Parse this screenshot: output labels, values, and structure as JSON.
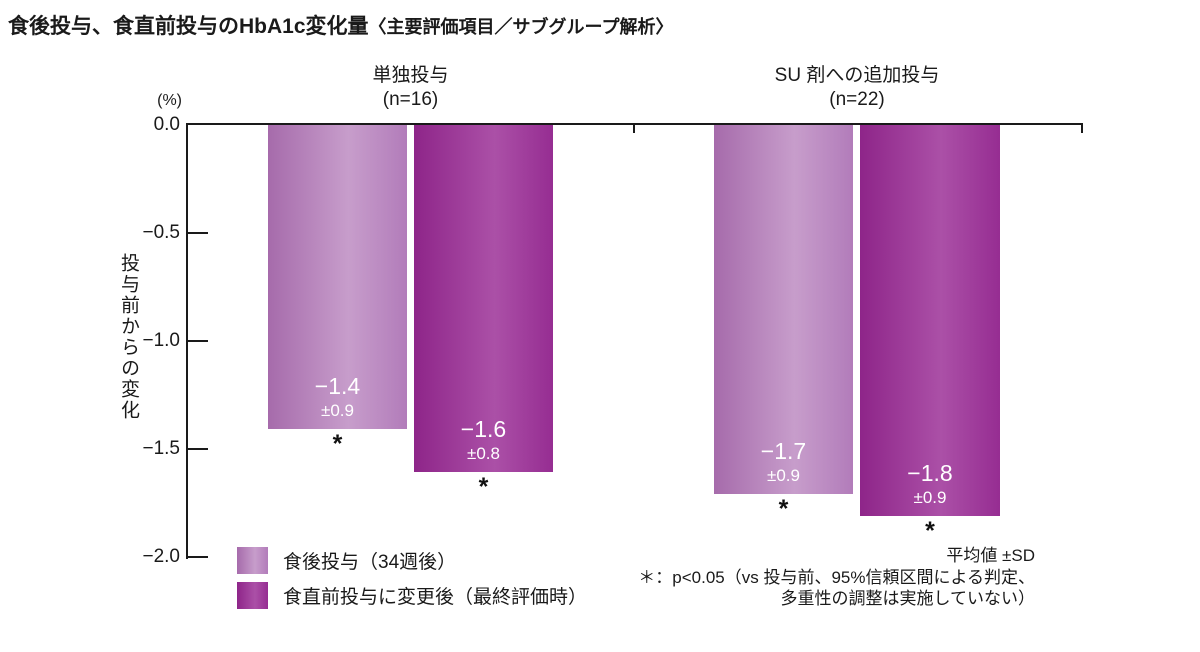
{
  "title": {
    "main": "食後投与、食直前投与のHbA1c変化量",
    "sub": "〈主要評価項目／サブグループ解析〉"
  },
  "chart_data": {
    "type": "bar",
    "unit_label": "(%)",
    "ylabel": "投与前からの変化",
    "ylim": [
      0,
      -2.0
    ],
    "yticks": [
      "0.0",
      "−0.5",
      "−1.0",
      "−1.5",
      "−2.0"
    ],
    "grid": false,
    "legend_position": "bottom-left",
    "groups": [
      {
        "label": "単独投与",
        "n_label": "(n=16)",
        "bars": [
          {
            "series": "食後投与（34週後）",
            "value": -1.4,
            "sd": 0.9,
            "value_label": "−1.4",
            "sd_label": "±0.9",
            "sig": "*"
          },
          {
            "series": "食直前投与に変更後（最終評価時）",
            "value": -1.6,
            "sd": 0.8,
            "value_label": "−1.6",
            "sd_label": "±0.8",
            "sig": "*"
          }
        ]
      },
      {
        "label": "SU 剤への追加投与",
        "n_label": "(n=22)",
        "bars": [
          {
            "series": "食後投与（34週後）",
            "value": -1.7,
            "sd": 0.9,
            "value_label": "−1.7",
            "sd_label": "±0.9",
            "sig": "*"
          },
          {
            "series": "食直前投与に変更後（最終評価時）",
            "value": -1.8,
            "sd": 0.9,
            "value_label": "−1.8",
            "sd_label": "±0.9",
            "sig": "*"
          }
        ]
      }
    ],
    "legend": [
      {
        "label": "食後投与（34週後）",
        "fill": "light"
      },
      {
        "label": "食直前投与に変更後（最終評価時）",
        "fill": "dark"
      }
    ],
    "footnotes": [
      "平均値 ±SD",
      "＊：p<0.05（vs 投与前、95%信頼区間による判定、",
      "多重性の調整は実施していない）"
    ]
  },
  "colors": {
    "axis": "#1a1a1a",
    "light_bar": {
      "edge": "#a66bab",
      "mid": "#c79dcb",
      "edge2": "#b27cba"
    },
    "dark_bar": {
      "edge": "#8e2589",
      "mid": "#ab50a7",
      "edge2": "#962d92"
    }
  }
}
